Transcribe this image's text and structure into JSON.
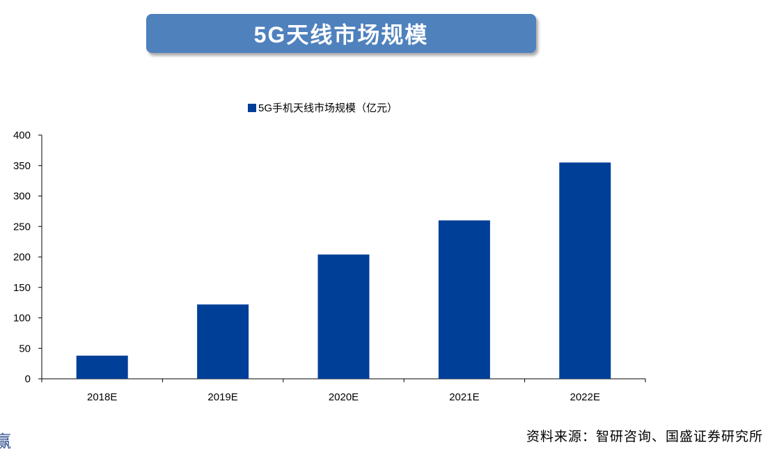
{
  "banner": {
    "title": "5G天线市场规模"
  },
  "footer": {
    "source": "资料来源：智研咨询、国盛证券研究所",
    "corner_glyph": "赢"
  },
  "chart_data": {
    "type": "bar",
    "categories": [
      "2018E",
      "2019E",
      "2020E",
      "2021E",
      "2022E"
    ],
    "series": [
      {
        "name": "5G手机天线市场规模（亿元）",
        "values": [
          38,
          122,
          204,
          260,
          355
        ],
        "color": "#003f98"
      }
    ],
    "ylim": [
      0,
      400
    ],
    "yticks": [
      0,
      50,
      100,
      150,
      200,
      250,
      300,
      350,
      400
    ],
    "grid": false,
    "legend": "top-center"
  }
}
